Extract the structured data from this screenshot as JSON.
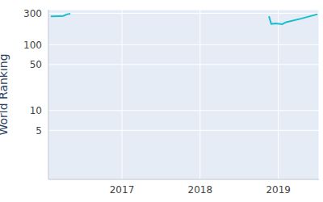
{
  "chart_data": {
    "type": "line",
    "y_label": "World Ranking",
    "x": [
      2016.09,
      2016.2,
      2016.25,
      2016.3,
      2016.34,
      2016.6,
      2018.88,
      2018.91,
      2018.97,
      2019.05,
      2019.1,
      2019.3,
      2019.5
    ],
    "series": [
      {
        "name": "World Ranking",
        "color": "#17becf",
        "values": [
          270,
          272,
          273,
          290,
          295,
          null,
          270,
          207,
          210,
          205,
          220,
          250,
          290
        ]
      }
    ],
    "xlim": [
      2016.06,
      2019.52
    ],
    "xticks": [
      2017,
      2018,
      2019
    ],
    "ylim": [
      0.9,
      340
    ],
    "yticks": [
      5,
      10,
      50,
      100,
      300
    ],
    "log": "y",
    "grid": true
  }
}
